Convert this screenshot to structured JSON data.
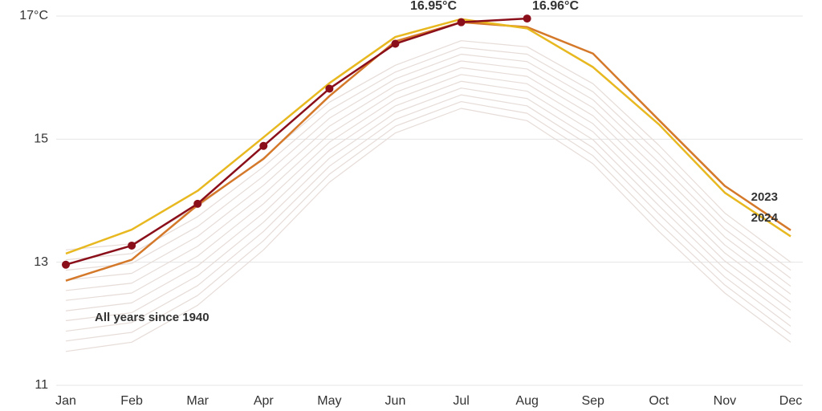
{
  "chart_data": {
    "type": "line",
    "categories": [
      "Jan",
      "Feb",
      "Mar",
      "Apr",
      "May",
      "Jun",
      "Jul",
      "Aug",
      "Sep",
      "Oct",
      "Nov",
      "Dec"
    ],
    "ylim": [
      11,
      17
    ],
    "yticks": [
      11,
      13,
      15,
      {
        "value": 17,
        "label": "17°C"
      }
    ],
    "grid": true,
    "background_label": "All years since 1940",
    "background_color": "#e6dcd8",
    "background_series": [
      [
        11.55,
        11.7,
        12.3,
        13.2,
        14.3,
        15.1,
        15.5,
        15.3,
        14.6,
        13.5,
        12.5,
        11.7
      ],
      [
        11.72,
        11.86,
        12.46,
        13.35,
        14.43,
        15.21,
        15.61,
        15.42,
        14.73,
        13.64,
        12.63,
        11.83
      ],
      [
        11.88,
        12.02,
        12.62,
        13.5,
        14.56,
        15.32,
        15.72,
        15.54,
        14.86,
        13.78,
        12.76,
        11.96
      ],
      [
        12.05,
        12.18,
        12.78,
        13.65,
        14.69,
        15.43,
        15.83,
        15.66,
        14.99,
        13.92,
        12.89,
        12.09
      ],
      [
        12.21,
        12.34,
        12.94,
        13.8,
        14.82,
        15.54,
        15.94,
        15.78,
        15.12,
        14.06,
        13.02,
        12.22
      ],
      [
        12.38,
        12.5,
        13.1,
        13.95,
        14.95,
        15.65,
        16.05,
        15.9,
        15.25,
        14.2,
        13.15,
        12.35
      ],
      [
        12.54,
        12.66,
        13.26,
        14.1,
        15.08,
        15.76,
        16.16,
        16.02,
        15.38,
        14.34,
        13.28,
        12.48
      ],
      [
        12.71,
        12.82,
        13.42,
        14.25,
        15.21,
        15.87,
        16.27,
        16.14,
        15.51,
        14.48,
        13.41,
        12.61
      ],
      [
        12.87,
        12.98,
        13.58,
        14.4,
        15.34,
        15.98,
        16.38,
        16.26,
        15.64,
        14.62,
        13.54,
        12.74
      ],
      [
        13.04,
        13.14,
        13.74,
        14.55,
        15.47,
        16.09,
        16.49,
        16.38,
        15.77,
        14.76,
        13.67,
        12.87
      ],
      [
        13.2,
        13.3,
        13.9,
        14.7,
        15.6,
        16.2,
        16.6,
        16.5,
        15.9,
        14.9,
        13.8,
        13.0
      ]
    ],
    "series": [
      {
        "name": "2023",
        "color": "#d4782a",
        "values": [
          12.7,
          13.04,
          13.93,
          14.68,
          15.7,
          16.59,
          16.9,
          16.82,
          16.39,
          15.31,
          14.24,
          13.52
        ]
      },
      {
        "name": "2024",
        "color": "#e8b820",
        "values": [
          13.14,
          13.53,
          14.16,
          15.03,
          15.91,
          16.66,
          16.95,
          16.8,
          16.17,
          15.24,
          14.13,
          13.42
        ]
      },
      {
        "color": "#8b0f1a",
        "markers": true,
        "values": [
          12.96,
          13.27,
          13.95,
          14.89,
          15.82,
          16.55,
          16.9,
          16.96,
          null,
          null,
          null,
          null
        ]
      }
    ],
    "annotations": [
      {
        "text": "16.95°C",
        "color": "#d4782a"
      },
      {
        "text": "16.96°C",
        "color": "#6e0c14"
      }
    ]
  }
}
